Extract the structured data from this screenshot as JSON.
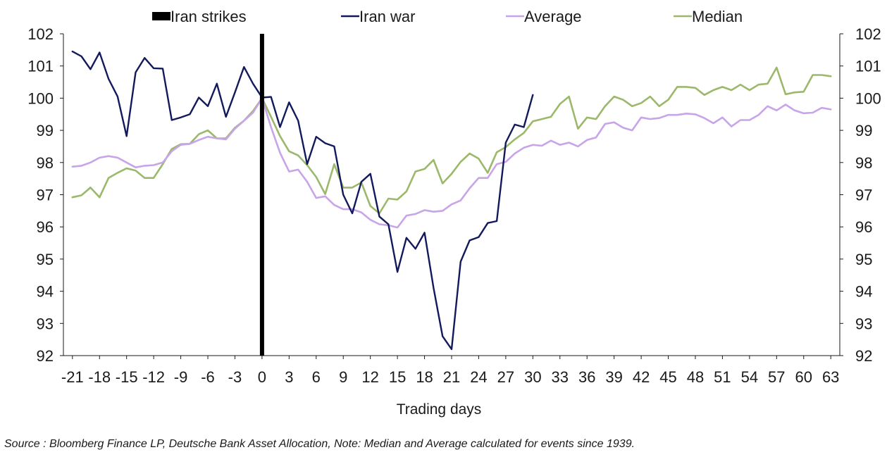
{
  "chart_data": {
    "type": "line",
    "title": "",
    "xlabel": "Trading days",
    "ylabel": "",
    "xlim": [
      -22,
      64
    ],
    "ylim": [
      92,
      102
    ],
    "x_ticks": [
      -21,
      -18,
      -15,
      -12,
      -9,
      -6,
      -3,
      0,
      3,
      6,
      9,
      12,
      15,
      18,
      21,
      24,
      27,
      30,
      33,
      36,
      39,
      42,
      45,
      48,
      51,
      54,
      57,
      60,
      63
    ],
    "y_ticks": [
      92,
      93,
      94,
      95,
      96,
      97,
      98,
      99,
      100,
      101,
      102
    ],
    "legend": [
      "Iran strikes",
      "Iran war",
      "Average",
      "Median"
    ],
    "legend_position": "top",
    "event_marker": {
      "name": "Iran strikes",
      "x": 0,
      "color": "#000000"
    },
    "series": [
      {
        "name": "Iran war",
        "color": "#131a5c",
        "x_start": -21,
        "values": [
          101.45,
          101.3,
          100.9,
          101.42,
          100.6,
          100.05,
          98.82,
          100.8,
          101.25,
          100.93,
          100.92,
          99.32,
          99.4,
          99.5,
          100.02,
          99.75,
          100.45,
          99.42,
          100.18,
          100.97,
          100.45,
          100.02,
          100.04,
          99.1,
          99.87,
          99.3,
          97.95,
          98.8,
          98.6,
          98.5,
          97.0,
          96.42,
          97.4,
          97.65,
          96.32,
          96.08,
          94.6,
          95.66,
          95.32,
          95.82,
          94.1,
          92.6,
          92.2,
          94.92,
          95.58,
          95.68,
          96.12,
          96.18,
          98.62,
          99.18,
          99.1,
          100.1
        ]
      },
      {
        "name": "Average",
        "color": "#c8a4e8",
        "x_start": -21,
        "values": [
          97.87,
          97.9,
          98.0,
          98.15,
          98.2,
          98.15,
          98.0,
          97.85,
          97.9,
          97.92,
          98.0,
          98.35,
          98.55,
          98.58,
          98.7,
          98.8,
          98.75,
          98.72,
          99.05,
          99.3,
          99.55,
          100.0,
          99.1,
          98.3,
          97.72,
          97.78,
          97.4,
          96.9,
          96.95,
          96.68,
          96.55,
          96.55,
          96.45,
          96.22,
          96.08,
          96.05,
          95.98,
          96.35,
          96.4,
          96.52,
          96.47,
          96.5,
          96.7,
          96.82,
          97.2,
          97.52,
          97.52,
          97.95,
          98.02,
          98.28,
          98.46,
          98.55,
          98.52,
          98.68,
          98.55,
          98.62,
          98.5,
          98.7,
          98.78,
          99.2,
          99.25,
          99.08,
          99.0,
          99.4,
          99.35,
          99.38,
          99.48,
          99.48,
          99.52,
          99.5,
          99.38,
          99.22,
          99.4,
          99.12,
          99.32,
          99.32,
          99.48,
          99.75,
          99.62,
          99.8,
          99.62,
          99.53,
          99.55,
          99.7,
          99.65
        ]
      },
      {
        "name": "Median",
        "color": "#9cb86a",
        "x_start": -21,
        "values": [
          96.92,
          96.98,
          97.22,
          96.92,
          97.52,
          97.68,
          97.82,
          97.75,
          97.52,
          97.52,
          97.95,
          98.42,
          98.57,
          98.58,
          98.88,
          99.0,
          98.75,
          98.75,
          99.08,
          99.3,
          99.6,
          100.0,
          99.42,
          98.82,
          98.35,
          98.22,
          97.92,
          97.55,
          97.02,
          97.95,
          97.22,
          97.22,
          97.38,
          96.65,
          96.42,
          96.88,
          96.85,
          97.1,
          97.72,
          97.8,
          98.08,
          97.35,
          97.65,
          98.02,
          98.28,
          98.12,
          97.68,
          98.32,
          98.48,
          98.72,
          98.92,
          99.28,
          99.35,
          99.42,
          99.82,
          100.05,
          99.05,
          99.4,
          99.35,
          99.75,
          100.05,
          99.95,
          99.75,
          99.85,
          100.05,
          99.75,
          99.95,
          100.35,
          100.35,
          100.32,
          100.1,
          100.25,
          100.35,
          100.25,
          100.42,
          100.25,
          100.42,
          100.45,
          100.95,
          100.12,
          100.18,
          100.2,
          100.72,
          100.72,
          100.68
        ]
      }
    ]
  },
  "source_note": "Source : Bloomberg Finance LP, Deutsche Bank Asset Allocation, Note: Median and Average calculated for events since 1939."
}
